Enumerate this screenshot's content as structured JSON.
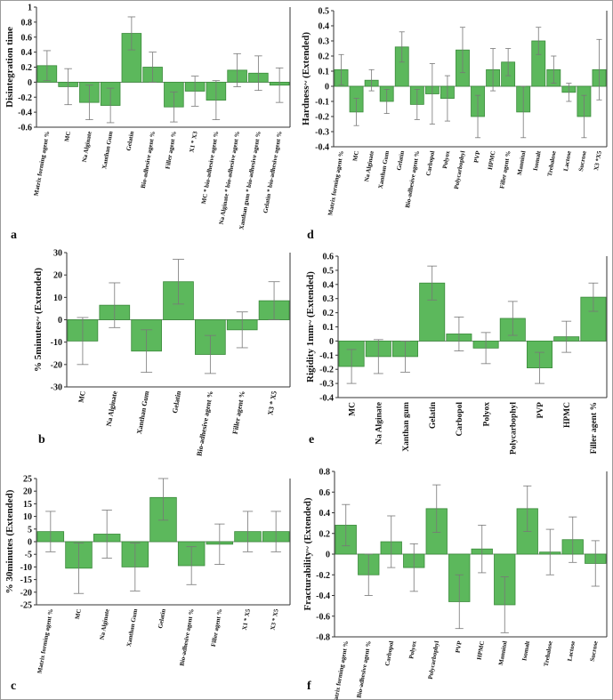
{
  "colors": {
    "bar_fill": "#5cb85c",
    "bar_stroke": "#3b8a3b",
    "zero_line": "#555555",
    "error_bar": "#777777",
    "axis": "#333333"
  },
  "chart_data": [
    {
      "panel": "a",
      "type": "bar",
      "ylabel": "Disintegration time",
      "yticks": [
        "1",
        "0.8",
        "0.6",
        "0.4",
        "0.2",
        "0",
        "-0.2",
        "-0.4",
        "-0.6"
      ],
      "ylim": [
        -0.6,
        1.0
      ],
      "categories": [
        "Matrix forming agent %",
        "MC",
        "Na Alginate",
        "Xanthan Gum",
        "Gelatin",
        "Bio-adhesive agent %",
        "Filler agent %",
        "X1 * X3",
        "MC * bio-adhesive agent %",
        "Na Alginate * bio-adhesive agent %",
        "Xanthan gum * bio-adhesive agent %",
        "Gelatin * bio-adhesive agent %"
      ],
      "values": [
        0.22,
        -0.06,
        -0.27,
        -0.31,
        0.65,
        0.2,
        -0.33,
        -0.12,
        -0.24,
        0.16,
        0.12,
        -0.04
      ],
      "errors": [
        0.2,
        0.24,
        0.23,
        0.23,
        0.22,
        0.2,
        0.2,
        0.2,
        0.26,
        0.22,
        0.23,
        0.23
      ]
    },
    {
      "panel": "d",
      "type": "bar",
      "ylabel": "Hardness~ (Extended)",
      "yticks": [
        "0.5",
        "0.4",
        "0.3",
        "0.2",
        "0.1",
        "0",
        "-0.1",
        "-0.2",
        "-0.3",
        "-0.4"
      ],
      "ylim": [
        -0.4,
        0.5
      ],
      "categories": [
        "Matrix forming agent %",
        "MC",
        "Na Alginate",
        "Xanthan Gum",
        "Gelatin",
        "Bio-adhesive agent %",
        "Carbopol",
        "Polyox",
        "Polycarbophyl",
        "PVP",
        "HPMC",
        "Filler agent %",
        "Mannitol",
        "Isomalt",
        "Trehalose",
        "Lactose",
        "Sucrose",
        "X3 *X5"
      ],
      "values": [
        0.11,
        -0.17,
        0.04,
        -0.1,
        0.26,
        -0.12,
        -0.05,
        -0.08,
        0.24,
        -0.2,
        0.11,
        0.16,
        -0.17,
        0.3,
        0.11,
        -0.04,
        -0.2,
        0.11
      ],
      "errors": [
        0.1,
        0.09,
        0.07,
        0.08,
        0.1,
        0.1,
        0.2,
        0.15,
        0.15,
        0.14,
        0.14,
        0.09,
        0.17,
        0.09,
        0.09,
        0.06,
        0.14,
        0.2
      ]
    },
    {
      "panel": "b",
      "type": "bar",
      "ylabel": "% 5minutes~ (Extended)",
      "yticks": [
        "30",
        "20",
        "10",
        "0",
        "-10",
        "-20",
        "-30"
      ],
      "ylim": [
        -30,
        30
      ],
      "categories": [
        "MC",
        "Na Alginate",
        "Xanthan Gum",
        "Gelatin",
        "Bio-adhesive agent %",
        "Filler agent %",
        "X3 * X5"
      ],
      "values": [
        -9.5,
        6.5,
        -14,
        17,
        -15.5,
        -4.5,
        8.5
      ],
      "errors": [
        10.5,
        10,
        9.5,
        10,
        8.5,
        8,
        8.5
      ]
    },
    {
      "panel": "e",
      "type": "bar",
      "ylabel": "Rigidity 1mm~ (Extended)",
      "yticks": [
        "0.6",
        "0.5",
        "0.4",
        "0.3",
        "0.2",
        "0.1",
        "0",
        "-0.1",
        "-0.2",
        "-0.3",
        "-0.4"
      ],
      "ylim": [
        -0.4,
        0.6
      ],
      "categories": [
        "MC",
        "Na Alginate",
        "Xanthan gum",
        "Gelatin",
        "Carbopol",
        "Polyox",
        "Polycarbophyl",
        "PVP",
        "HPMC",
        "Filler agent %"
      ],
      "values": [
        -0.18,
        -0.11,
        -0.11,
        0.41,
        0.05,
        -0.05,
        0.16,
        -0.19,
        0.03,
        0.31
      ],
      "errors": [
        0.12,
        0.12,
        0.11,
        0.12,
        0.12,
        0.11,
        0.12,
        0.11,
        0.11,
        0.1
      ]
    },
    {
      "panel": "c",
      "type": "bar",
      "ylabel": "% 30minutes (Extended)",
      "yticks": [
        "25",
        "20",
        "15",
        "10",
        "5",
        "0",
        "-5",
        "-10",
        "-15",
        "-20",
        "-25"
      ],
      "ylim": [
        -25,
        25
      ],
      "categories": [
        "Matrix forming agent %",
        "MC",
        "Na Alginate",
        "Xanthan Gum",
        "Gelatin",
        "Bio-adhesive agent %",
        "Filler agent %",
        "X1 * X5",
        "X3 * X5"
      ],
      "values": [
        4,
        -10.5,
        3,
        -10,
        17.5,
        -9.5,
        -1,
        4,
        4
      ],
      "errors": [
        8,
        10,
        9.5,
        9.5,
        9,
        7.5,
        8,
        8,
        8
      ]
    },
    {
      "panel": "f",
      "type": "bar",
      "ylabel": "Fracturability~ (Extended)",
      "yticks": [
        "0.8",
        "0.6",
        "0.4",
        "0.2",
        "0",
        "-0.2",
        "-0.4",
        "-0.6",
        "-0.8"
      ],
      "ylim": [
        -0.8,
        0.8
      ],
      "categories": [
        "Matrix forming agent %",
        "Bio-adhesive agent %",
        "Carbopol",
        "Polyox",
        "Polycarbophyl",
        "PVP",
        "HPMC",
        "Mannitol",
        "Isomalt",
        "Trehalose",
        "Lactose",
        "Sucrose"
      ],
      "values": [
        0.28,
        -0.2,
        0.12,
        -0.13,
        0.44,
        -0.46,
        0.05,
        -0.49,
        0.44,
        0.02,
        0.14,
        -0.09
      ],
      "errors": [
        0.2,
        0.2,
        0.25,
        0.23,
        0.23,
        0.26,
        0.23,
        0.27,
        0.22,
        0.22,
        0.22,
        0.22
      ]
    }
  ]
}
